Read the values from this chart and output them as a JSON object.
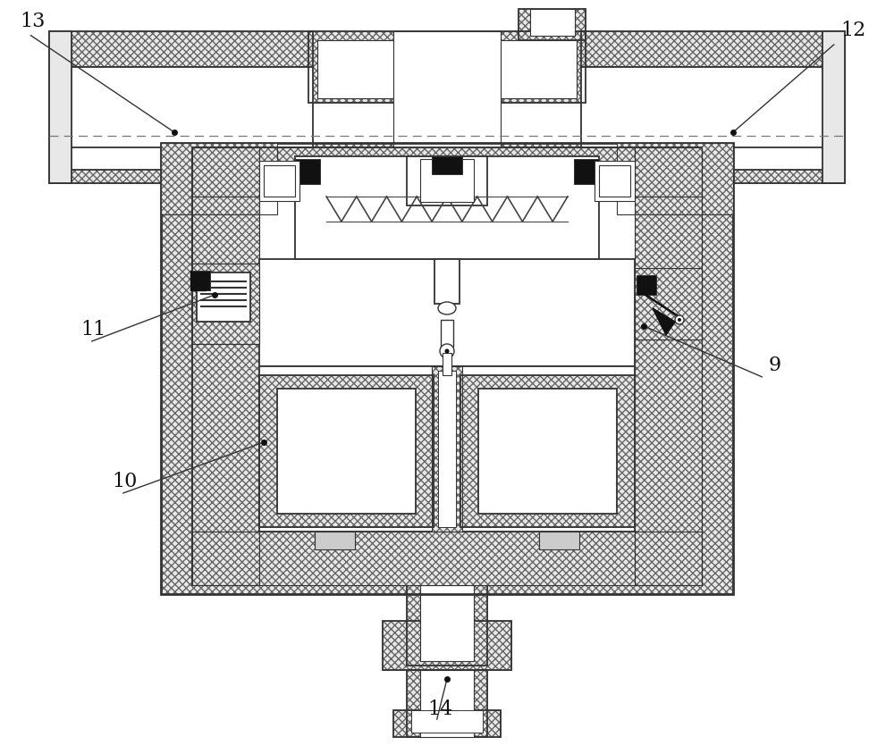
{
  "bg_color": "#ffffff",
  "lc": "#333333",
  "hatch_fc": "#e0e0e0",
  "white": "#ffffff",
  "dark": "#111111",
  "gray": "#888888"
}
